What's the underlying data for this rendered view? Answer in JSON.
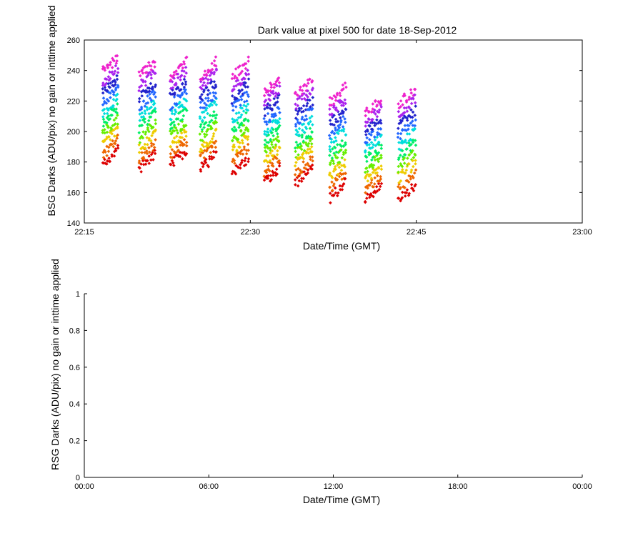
{
  "chart_data": [
    {
      "type": "scatter",
      "title": "Dark value at pixel 500 for date 18-Sep-2012",
      "xlabel": "Date/Time (GMT)",
      "ylabel": "BSG Darks (ADU/pix) no gain or inttime applied",
      "xlim_min": [
        1335,
        1380
      ],
      "ylim": [
        140,
        260
      ],
      "xticks": [
        1335,
        1350,
        1365,
        1380
      ],
      "xtick_labels": [
        "22:15",
        "22:30",
        "22:45",
        "23:00"
      ],
      "yticks": [
        140,
        160,
        180,
        200,
        220,
        240,
        260
      ],
      "ytick_labels": [
        "140",
        "160",
        "180",
        "200",
        "220",
        "240",
        "260"
      ],
      "colors": [
        "#dd0000",
        "#ee6600",
        "#eecc00",
        "#66ee00",
        "#00ee66",
        "#00dddd",
        "#2266ff",
        "#2222cc",
        "#aa22ee",
        "#ee22cc"
      ],
      "groups": [
        {
          "x": [
            1336.7,
            1338.0
          ],
          "ymin": 175,
          "ymax": 252
        },
        {
          "x": [
            1340.0,
            1341.4
          ],
          "ymin": 172,
          "ymax": 249
        },
        {
          "x": [
            1342.8,
            1344.2
          ],
          "ymin": 175,
          "ymax": 249
        },
        {
          "x": [
            1345.5,
            1346.9
          ],
          "ymin": 172,
          "ymax": 249
        },
        {
          "x": [
            1348.4,
            1349.8
          ],
          "ymin": 169,
          "ymax": 249
        },
        {
          "x": [
            1351.3,
            1352.6
          ],
          "ymin": 164,
          "ymax": 238
        },
        {
          "x": [
            1354.1,
            1355.6
          ],
          "ymin": 163,
          "ymax": 236
        },
        {
          "x": [
            1357.2,
            1358.6
          ],
          "ymin": 153,
          "ymax": 232
        },
        {
          "x": [
            1360.4,
            1361.8
          ],
          "ymin": 153,
          "ymax": 224
        },
        {
          "x": [
            1363.4,
            1364.9
          ],
          "ymin": 152,
          "ymax": 231
        }
      ]
    },
    {
      "type": "line",
      "title": "",
      "xlabel": "Date/Time (GMT)",
      "ylabel": "RSG Darks (ADU/pix) no gain or inttime applied",
      "xlim_hours": [
        0,
        24
      ],
      "ylim": [
        0,
        1
      ],
      "xticks": [
        0,
        6,
        12,
        18,
        24
      ],
      "xtick_labels": [
        "00:00",
        "06:00",
        "12:00",
        "18:00",
        "00:00"
      ],
      "yticks": [
        0,
        0.2,
        0.4,
        0.6,
        0.8,
        1
      ],
      "ytick_labels": [
        "0",
        "0.2",
        "0.4",
        "0.6",
        "0.8",
        "1"
      ],
      "series": []
    }
  ]
}
